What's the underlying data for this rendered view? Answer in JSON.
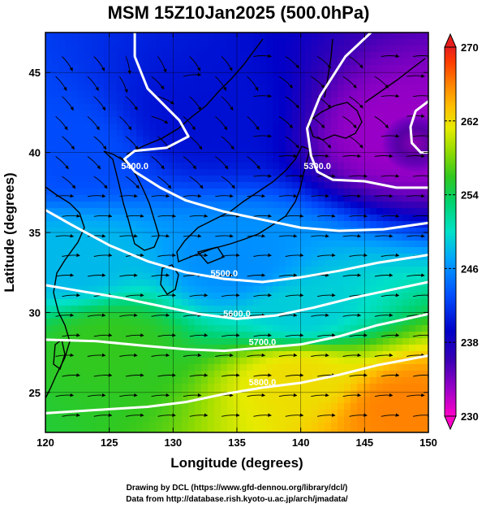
{
  "chart_data": {
    "type": "heatmap",
    "title": "MSM 15Z10Jan2025 (500.0hPa)",
    "xlabel": "Longitude (degrees)",
    "ylabel": "Latitude  (degrees)",
    "xlim": [
      120,
      150
    ],
    "ylim": [
      22.5,
      47.5
    ],
    "xticks": [
      "120",
      "125",
      "130",
      "135",
      "140",
      "145",
      "150"
    ],
    "yticks": [
      "25",
      "30",
      "35",
      "40",
      "45"
    ],
    "grid": true,
    "colorbar": {
      "min": 230,
      "max": 270,
      "ticks": [
        "230",
        "238",
        "246",
        "254",
        "262",
        "270"
      ]
    },
    "contours": [
      {
        "label": "5400.0",
        "points": [
          [
            127,
            47.5
          ],
          [
            127,
            46
          ],
          [
            128,
            44
          ],
          [
            130.5,
            42
          ],
          [
            131.2,
            41
          ],
          [
            129.5,
            40.3
          ],
          [
            127,
            40.1
          ],
          [
            126.2,
            39.6
          ],
          [
            127,
            38.8
          ],
          [
            129,
            37.8
          ],
          [
            131,
            37
          ],
          [
            134,
            36.3
          ],
          [
            137,
            35.8
          ],
          [
            140,
            35.3
          ],
          [
            143,
            35.1
          ],
          [
            146.5,
            35.2
          ],
          [
            150,
            35.6
          ]
        ]
      },
      {
        "label": "5300.0",
        "points": [
          [
            145.5,
            47.5
          ],
          [
            143.5,
            46
          ],
          [
            141.5,
            43.5
          ],
          [
            140.5,
            41.5
          ],
          [
            140.8,
            39.8
          ],
          [
            141.3,
            38.8
          ],
          [
            142.5,
            38.3
          ],
          [
            145,
            38.2
          ],
          [
            147.5,
            37.8
          ],
          [
            150,
            37.8
          ]
        ]
      },
      {
        "label": "5500.0",
        "points": [
          [
            120,
            36.4
          ],
          [
            122,
            35.5
          ],
          [
            125,
            34.2
          ],
          [
            128,
            33.2
          ],
          [
            131,
            32.5
          ],
          [
            134,
            32.1
          ],
          [
            137,
            31.9
          ],
          [
            140,
            32.2
          ],
          [
            143,
            32.6
          ],
          [
            146,
            33.1
          ],
          [
            150,
            33.6
          ]
        ]
      },
      {
        "label": "5600.0",
        "points": [
          [
            120,
            31.7
          ],
          [
            123,
            31.3
          ],
          [
            126,
            30.9
          ],
          [
            129,
            30.4
          ],
          [
            132,
            29.9
          ],
          [
            135,
            29.6
          ],
          [
            138,
            29.8
          ],
          [
            141,
            30.3
          ],
          [
            144,
            30.9
          ],
          [
            147,
            31.4
          ],
          [
            150,
            31.9
          ]
        ]
      },
      {
        "label": "5700.0",
        "points": [
          [
            120,
            28.3
          ],
          [
            124,
            28.2
          ],
          [
            128,
            27.9
          ],
          [
            131,
            27.7
          ],
          [
            134,
            27.6
          ],
          [
            137,
            27.8
          ],
          [
            140,
            28.0
          ],
          [
            143,
            28.5
          ],
          [
            146,
            29.2
          ],
          [
            150,
            29.9
          ]
        ]
      },
      {
        "label": "5800.0",
        "points": [
          [
            120,
            23.7
          ],
          [
            124,
            23.9
          ],
          [
            128,
            24.1
          ],
          [
            131,
            24.4
          ],
          [
            134,
            24.9
          ],
          [
            137,
            25.3
          ],
          [
            140,
            25.6
          ],
          [
            143,
            26.1
          ],
          [
            146,
            26.7
          ],
          [
            150,
            27.3
          ]
        ]
      },
      {
        "label": "",
        "points": [
          [
            150,
            43.2
          ],
          [
            149,
            42.6
          ],
          [
            148.6,
            41.6
          ],
          [
            148.7,
            40.6
          ],
          [
            149.4,
            40.0
          ],
          [
            150,
            40.0
          ]
        ]
      }
    ],
    "temperature_samples": [
      {
        "lon": 148,
        "lat": 41,
        "value": 233
      },
      {
        "lon": 132,
        "lat": 42,
        "value": 240
      },
      {
        "lon": 122,
        "lat": 40,
        "value": 243
      },
      {
        "lon": 122,
        "lat": 33,
        "value": 248
      },
      {
        "lon": 135,
        "lat": 33,
        "value": 246
      },
      {
        "lon": 140,
        "lat": 30,
        "value": 249
      },
      {
        "lon": 125,
        "lat": 28,
        "value": 256
      },
      {
        "lon": 140,
        "lat": 26,
        "value": 262
      },
      {
        "lon": 148,
        "lat": 24,
        "value": 266
      }
    ]
  },
  "credits": {
    "line1": "Drawing by DCL (https://www.gfd-dennou.org/library/dcl/)",
    "line2": "Data from http://database.rish.kyoto-u.ac.jp/arch/jmadata/"
  }
}
